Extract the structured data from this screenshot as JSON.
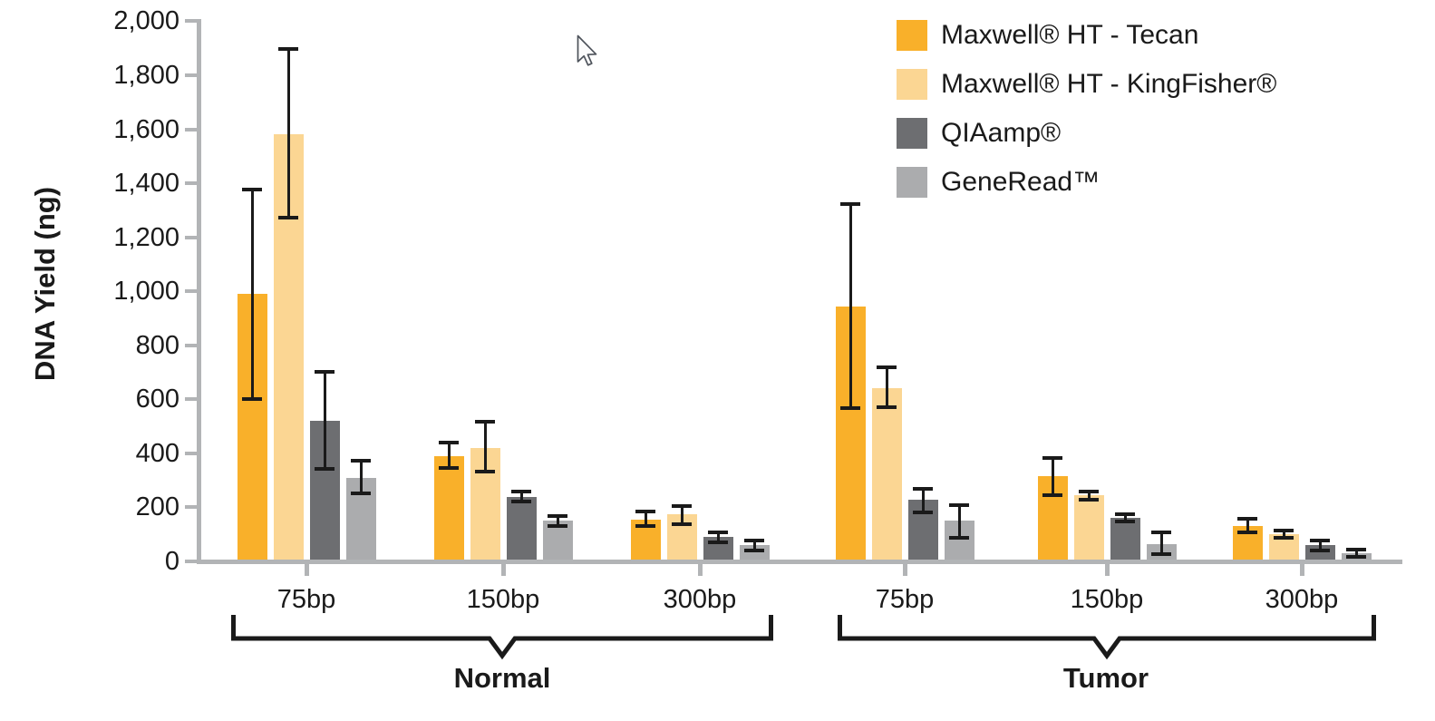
{
  "chart_data": {
    "type": "bar",
    "title": "",
    "xlabel": "",
    "ylabel": "DNA Yield (ng)",
    "ylim": [
      0,
      2000
    ],
    "y_tick_step": 200,
    "y_tick_labels": [
      "2,000",
      "1,800",
      "1,600",
      "1,400",
      "1,200",
      "1,000",
      "800",
      "600",
      "400",
      "200",
      "0"
    ],
    "grid": false,
    "legend_position": "top-right",
    "sections": [
      {
        "label": "Normal",
        "categories": [
          "75bp",
          "150bp",
          "300bp"
        ]
      },
      {
        "label": "Tumor",
        "categories": [
          "75bp",
          "150bp",
          "300bp"
        ]
      }
    ],
    "group_order_note": "values arrays are ordered: Normal 75bp, Normal 150bp, Normal 300bp, Tumor 75bp, Tumor 150bp, Tumor 300bp",
    "series": [
      {
        "name": "Maxwell® HT - Tecan",
        "color": "#F9B02A",
        "values": [
          990,
          390,
          155,
          945,
          315,
          130
        ],
        "error_low": [
          600,
          345,
          130,
          565,
          245,
          105
        ],
        "error_high": [
          1380,
          440,
          185,
          1325,
          385,
          160
        ]
      },
      {
        "name": "Maxwell® HT - KingFisher®",
        "color": "#FBD693",
        "values": [
          1580,
          420,
          175,
          640,
          245,
          100
        ],
        "error_low": [
          1270,
          330,
          135,
          570,
          225,
          85
        ],
        "error_high": [
          1900,
          520,
          205,
          720,
          260,
          115
        ]
      },
      {
        "name": "QIAamp®",
        "color": "#6D6E71",
        "values": [
          520,
          240,
          90,
          230,
          160,
          60
        ],
        "error_low": [
          340,
          220,
          70,
          180,
          145,
          40
        ],
        "error_high": [
          705,
          260,
          110,
          270,
          175,
          80
        ]
      },
      {
        "name": "GeneRead™",
        "color": "#ABACAE",
        "values": [
          310,
          150,
          60,
          150,
          65,
          30
        ],
        "error_low": [
          250,
          130,
          40,
          85,
          25,
          15
        ],
        "error_high": [
          375,
          170,
          80,
          210,
          110,
          45
        ]
      }
    ]
  }
}
